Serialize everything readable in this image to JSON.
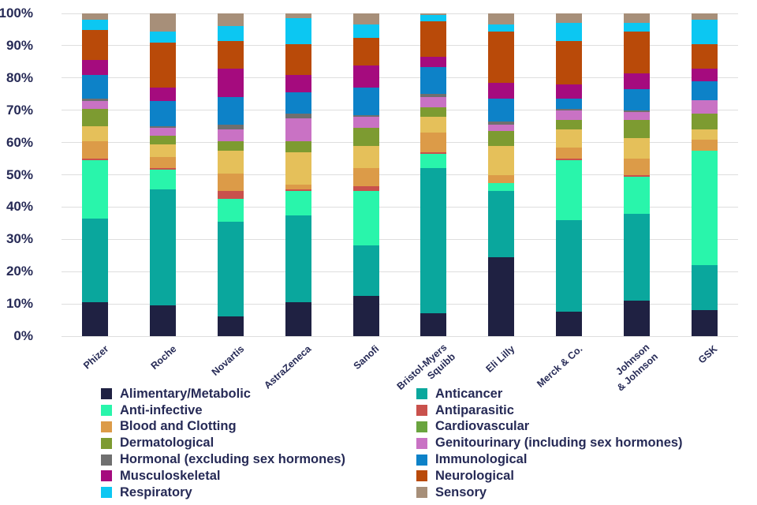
{
  "chart_data": {
    "type": "bar",
    "subtype": "stacked-100-percent",
    "title": "",
    "xlabel": "",
    "ylabel": "",
    "ylim": [
      0,
      100
    ],
    "grid": "horizontal",
    "y_ticks": [
      "0%",
      "10%",
      "20%",
      "30%",
      "40%",
      "50%",
      "60%",
      "70%",
      "80%",
      "90%",
      "100%"
    ],
    "categories": [
      "Phizer",
      "Roche",
      "Novartis",
      "AstraZeneca",
      "Sanofi",
      "Bristol-Myers\nSquibb",
      "Eli Lilly",
      "Merck & Co.",
      "Johnson\n& Johnson",
      "GSK"
    ],
    "series": [
      {
        "name": "Alimentary/Metabolic",
        "color": "#1f2142",
        "values": [
          10.5,
          9.5,
          6,
          10.5,
          12.5,
          7,
          24.5,
          7.5,
          11,
          8
        ]
      },
      {
        "name": "Anticancer",
        "color": "#0aa79d",
        "values": [
          26,
          36,
          29.5,
          27,
          15.5,
          45,
          20.5,
          28.5,
          27,
          14
        ]
      },
      {
        "name": "Anti-infective",
        "color": "#29f5ab",
        "values": [
          18,
          6,
          7,
          7.5,
          17,
          4.5,
          2.5,
          18.5,
          11.5,
          35.5
        ]
      },
      {
        "name": "Antiparasitic",
        "color": "#c9514c",
        "values": [
          0.5,
          0.5,
          2.5,
          0.5,
          1.5,
          0.5,
          0,
          0.5,
          0.5,
          0
        ]
      },
      {
        "name": "Blood and Clotting",
        "color": "#dc9b48",
        "values": [
          5.5,
          3.5,
          5.5,
          1.5,
          5.5,
          6,
          2.5,
          3.5,
          5,
          3.5
        ]
      },
      {
        "name": "Cardiovascular",
        "color": "#e5c05a",
        "legend_color": "#6aa43f",
        "values": [
          4.5,
          4,
          7,
          10,
          7,
          5,
          9,
          5.5,
          6.5,
          3
        ]
      },
      {
        "name": "Dermatological",
        "color": "#7d9b31",
        "values": [
          5.5,
          2.5,
          3,
          3.5,
          5.5,
          3,
          4.5,
          3,
          5.5,
          5
        ]
      },
      {
        "name": "Genitourinary (including sex hormones)",
        "color": "#c972c4",
        "values": [
          2.5,
          2.5,
          3.5,
          7,
          3.5,
          3,
          2,
          3,
          2.5,
          4
        ]
      },
      {
        "name": "Hormonal (excluding sex hormones)",
        "color": "#6f6f6f",
        "values": [
          0.5,
          0.5,
          1.5,
          1.5,
          0.5,
          1,
          1,
          0.5,
          0.5,
          0
        ]
      },
      {
        "name": "Immunological",
        "color": "#0d82c8",
        "values": [
          7.5,
          8,
          8.5,
          6.5,
          8.5,
          8.5,
          7,
          3,
          6.5,
          6
        ]
      },
      {
        "name": "Musculoskeletal",
        "color": "#a50b7e",
        "values": [
          4.5,
          4,
          9,
          5.5,
          7,
          3,
          5,
          4.5,
          5,
          4
        ]
      },
      {
        "name": "Neurological",
        "color": "#b94a09",
        "values": [
          9.5,
          14,
          8.5,
          9.5,
          8.5,
          11,
          16,
          13.5,
          13,
          7.5
        ]
      },
      {
        "name": "Respiratory",
        "color": "#0cc7f2",
        "values": [
          3,
          3.5,
          4.5,
          8,
          4,
          2,
          2,
          5.5,
          2.5,
          7.5
        ]
      },
      {
        "name": "Sensory",
        "color": "#a78f79",
        "values": [
          2,
          5.5,
          4,
          1.5,
          3.5,
          0.5,
          3.5,
          3,
          3,
          2
        ]
      }
    ],
    "legend": {
      "position": "bottom-two-columns",
      "left_column": [
        "Alimentary/Metabolic",
        "Anti-infective",
        "Blood and Clotting",
        "Dermatological",
        "Hormonal (excluding sex hormones)",
        "Musculoskeletal",
        "Respiratory"
      ],
      "right_column": [
        "Anticancer",
        "Antiparasitic",
        "Cardiovascular",
        "Genitourinary (including sex hormones)",
        "Immunological",
        "Neurological",
        "Sensory"
      ]
    },
    "colors": {
      "text": "#262a56",
      "gridline": "#dedede",
      "background": "#ffffff"
    }
  }
}
